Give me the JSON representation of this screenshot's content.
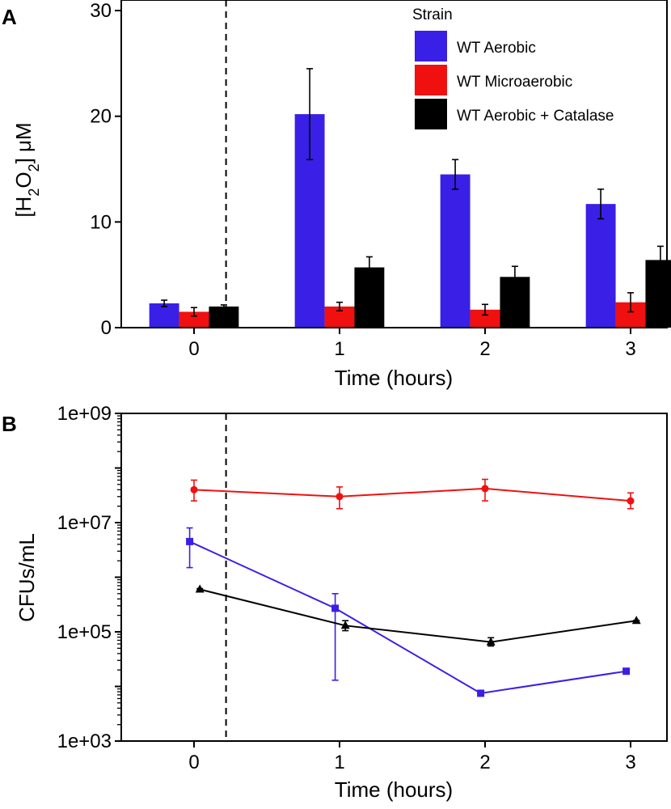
{
  "colors": {
    "wt_aerobic": "#3a1fe6",
    "wt_microaerobic": "#f01010",
    "wt_aerobic_catalase": "#000000"
  },
  "chart_data": [
    {
      "panel": "A",
      "type": "bar",
      "xlabel": "Time (hours)",
      "ylabel_parts": [
        "[H",
        "2",
        "O",
        "2",
        "] μM"
      ],
      "categories": [
        "0",
        "1",
        "2",
        "3"
      ],
      "ylim": [
        0,
        31
      ],
      "yticks": [
        0,
        10,
        20,
        30
      ],
      "vline_x": 0.22,
      "legend": {
        "title": "Strain",
        "placement": "top-right"
      },
      "series": [
        {
          "name": "WT Aerobic",
          "color": "#3a1fe6",
          "values": [
            2.3,
            20.2,
            14.5,
            11.7
          ],
          "errors": [
            0.3,
            4.3,
            1.4,
            1.4
          ]
        },
        {
          "name": "WT Microaerobic",
          "color": "#f01010",
          "values": [
            1.5,
            2.0,
            1.7,
            2.4
          ],
          "errors": [
            0.4,
            0.4,
            0.5,
            0.9
          ]
        },
        {
          "name": "WT Aerobic + Catalase",
          "color": "#000000",
          "values": [
            2.0,
            5.7,
            4.8,
            6.4
          ],
          "errors": [
            0.15,
            1.0,
            1.0,
            1.3
          ]
        }
      ]
    },
    {
      "panel": "B",
      "type": "line",
      "xlabel": "Time (hours)",
      "ylabel": "CFUs/mL",
      "y_scale": "log",
      "xlim": [
        -0.5,
        3.25
      ],
      "ylim": [
        1000,
        1000000000
      ],
      "xticks": [
        0,
        1,
        2,
        3
      ],
      "xtick_labels": [
        "0",
        "1",
        "2",
        "3"
      ],
      "yticks": [
        1000,
        100000,
        10000000,
        1000000000
      ],
      "ytick_labels": [
        "1e+03",
        "1e+05",
        "1e+07",
        "1e+09"
      ],
      "vline_x": 0.22,
      "series": [
        {
          "color": "#f01010",
          "marker": "circle",
          "x": [
            0,
            1,
            2,
            3
          ],
          "y": [
            40000000,
            30000000,
            42000000,
            25000000
          ],
          "y_low": [
            25000000,
            18000000,
            25000000,
            18000000
          ],
          "y_high": [
            60000000,
            45000000,
            62000000,
            35000000
          ]
        },
        {
          "color": "#3a1fe6",
          "marker": "square",
          "x": [
            -0.03,
            0.97,
            1.97,
            2.97
          ],
          "y": [
            4500000,
            270000,
            7500,
            19000
          ],
          "y_low": [
            1500000,
            13000,
            7000,
            18000
          ],
          "y_high": [
            8000000,
            500000,
            8000,
            20000
          ]
        },
        {
          "color": "#000000",
          "marker": "triangle",
          "x": [
            0.04,
            1.04,
            2.04,
            3.04
          ],
          "y": [
            600000,
            130000,
            65000,
            160000
          ],
          "y_low": [
            580000,
            105000,
            55000,
            158000
          ],
          "y_high": [
            620000,
            160000,
            78000,
            162000
          ]
        }
      ]
    }
  ]
}
